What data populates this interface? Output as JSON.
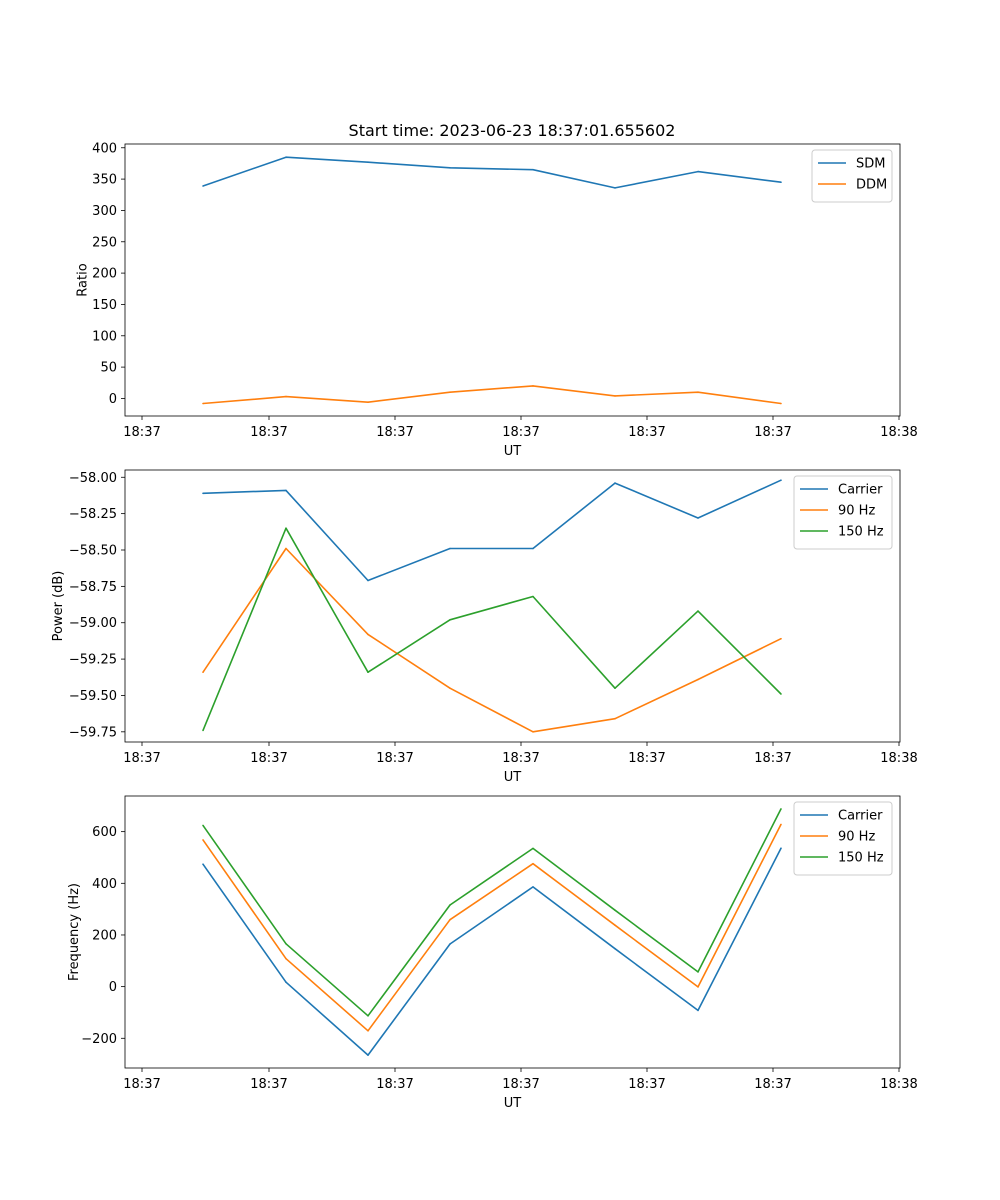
{
  "figure": {
    "title": "Start time: 2023-06-23 18:37:01.655602"
  },
  "chart_data": [
    {
      "type": "line",
      "xlabel": "UT",
      "ylabel": "Ratio",
      "x_tick_labels": [
        "18:37",
        "18:37",
        "18:37",
        "18:37",
        "18:37",
        "18:37",
        "18:38"
      ],
      "y_ticks": [
        0,
        50,
        100,
        150,
        200,
        250,
        300,
        350,
        400
      ],
      "ylim": [
        -28,
        406
      ],
      "legend_position": "top-right",
      "series": [
        {
          "name": "SDM",
          "color": "#1f77b4",
          "values": [
            339,
            385,
            377,
            368,
            365,
            336,
            362,
            345
          ]
        },
        {
          "name": "DDM",
          "color": "#ff7f0e",
          "values": [
            -8,
            3,
            -6,
            10,
            20,
            4,
            10,
            -8
          ]
        }
      ]
    },
    {
      "type": "line",
      "xlabel": "UT",
      "ylabel": "Power (dB)",
      "x_tick_labels": [
        "18:37",
        "18:37",
        "18:37",
        "18:37",
        "18:37",
        "18:37",
        "18:38"
      ],
      "y_ticks": [
        -58.0,
        -58.25,
        -58.5,
        -58.75,
        -59.0,
        -59.25,
        -59.5,
        -59.75
      ],
      "y_tick_labels": [
        "−58.00",
        "−58.25",
        "−58.50",
        "−58.75",
        "−59.00",
        "−59.25",
        "−59.50",
        "−59.75"
      ],
      "ylim": [
        -59.82,
        -57.95
      ],
      "legend_position": "top-right",
      "series": [
        {
          "name": "Carrier",
          "color": "#1f77b4",
          "values": [
            -58.11,
            -58.09,
            -58.71,
            -58.49,
            -58.49,
            -58.04,
            -58.28,
            -58.02
          ]
        },
        {
          "name": "90 Hz",
          "color": "#ff7f0e",
          "values": [
            -59.34,
            -58.49,
            -59.08,
            -59.45,
            -59.75,
            -59.66,
            -59.39,
            -59.11
          ]
        },
        {
          "name": "150 Hz",
          "color": "#2ca02c",
          "values": [
            -59.74,
            -58.35,
            -59.34,
            -58.98,
            -58.82,
            -59.45,
            -58.92,
            -59.49
          ]
        }
      ]
    },
    {
      "type": "line",
      "xlabel": "UT",
      "ylabel": "Frequency (Hz)",
      "x_tick_labels": [
        "18:37",
        "18:37",
        "18:37",
        "18:37",
        "18:37",
        "18:37",
        "18:38"
      ],
      "y_ticks": [
        -200,
        0,
        200,
        400,
        600
      ],
      "y_tick_labels": [
        "−200",
        "0",
        "200",
        "400",
        "600"
      ],
      "ylim": [
        -315,
        738
      ],
      "legend_position": "top-right",
      "series": [
        {
          "name": "Carrier",
          "color": "#1f77b4",
          "values": [
            474,
            17,
            -265,
            165,
            386,
            147,
            -92,
            536
          ]
        },
        {
          "name": "90 Hz",
          "color": "#ff7f0e",
          "values": [
            568,
            108,
            -171,
            259,
            476,
            238,
            -1,
            628
          ]
        },
        {
          "name": "150 Hz",
          "color": "#2ca02c",
          "values": [
            624,
            166,
            -113,
            316,
            535,
            296,
            57,
            688
          ]
        }
      ]
    }
  ]
}
